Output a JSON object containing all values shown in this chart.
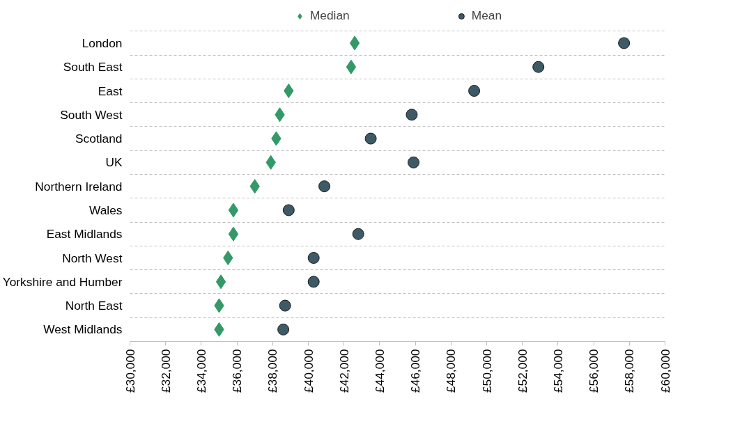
{
  "chart_data": {
    "type": "scatter",
    "orientation": "horizontal",
    "categories": [
      "London",
      "South East",
      "East",
      "South West",
      "Scotland",
      "UK",
      "Northern Ireland",
      "Wales",
      "East Midlands",
      "North West",
      "Yorkshire and Humber",
      "North East",
      "West Midlands"
    ],
    "series": [
      {
        "name": "Median",
        "color": "#339966",
        "marker": "diamond",
        "values": [
          42600,
          42400,
          38900,
          38400,
          38200,
          37900,
          37000,
          35800,
          35800,
          35500,
          35100,
          35000,
          35000
        ]
      },
      {
        "name": "Mean",
        "color": "#3d5a66",
        "marker": "circle",
        "values": [
          57700,
          52900,
          49300,
          45800,
          43500,
          45900,
          40900,
          38900,
          42800,
          40300,
          40300,
          38700,
          38600
        ]
      }
    ],
    "xlim": [
      30000,
      60000
    ],
    "xticks": [
      {
        "value": 30000,
        "label": "£30,000"
      },
      {
        "value": 32000,
        "label": "£32,000"
      },
      {
        "value": 34000,
        "label": "£34,000"
      },
      {
        "value": 36000,
        "label": "£36,000"
      },
      {
        "value": 38000,
        "label": "£38,000"
      },
      {
        "value": 40000,
        "label": "£40,000"
      },
      {
        "value": 42000,
        "label": "£42,000"
      },
      {
        "value": 44000,
        "label": "£44,000"
      },
      {
        "value": 46000,
        "label": "£46,000"
      },
      {
        "value": 48000,
        "label": "£48,000"
      },
      {
        "value": 50000,
        "label": "£50,000"
      },
      {
        "value": 52000,
        "label": "£52,000"
      },
      {
        "value": 54000,
        "label": "£54,000"
      },
      {
        "value": 56000,
        "label": "£56,000"
      },
      {
        "value": 58000,
        "label": "£58,000"
      },
      {
        "value": 60000,
        "label": "£60,000"
      }
    ],
    "grid": "y",
    "legend": "top"
  }
}
